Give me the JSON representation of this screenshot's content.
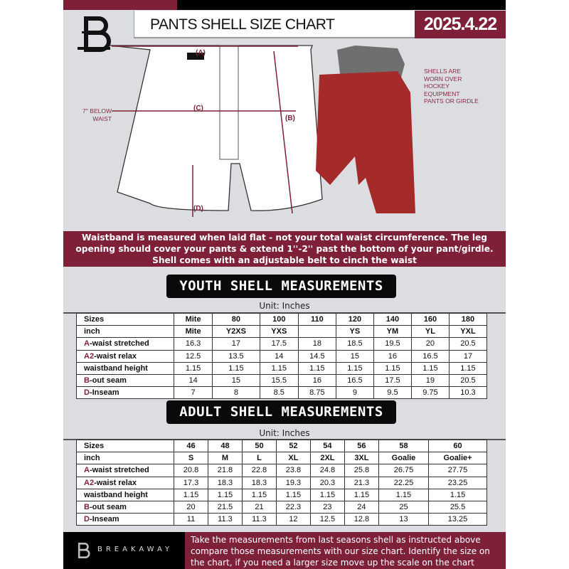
{
  "header": {
    "title": "PANTS SHELL SIZE CHART",
    "date": "2025.4.22"
  },
  "diagram": {
    "label_a": "(A)",
    "label_b": "(B)",
    "label_c": "(C)",
    "label_d": "(D)",
    "below_waist": "7'' BELOW WAIST",
    "note": "SHELLS ARE WORN OVER HOCKEY EQUIPMENT PANTS OR GIRDLE"
  },
  "banner": "Waistband is measured when laid flat - not your total waist circumference. The leg opening should cover your pants & extend 1''-2'' past the bottom of your pant/girdle. Shell comes with an adjustable belt to cinch the waist",
  "youth": {
    "title": "YOUTH SHELL MEASUREMENTS",
    "unit": "Unit: Inches",
    "rows": [
      {
        "prefix": "",
        "label": "Sizes",
        "values": [
          "Mite",
          "80",
          "100",
          "110",
          "120",
          "140",
          "160",
          "180"
        ]
      },
      {
        "prefix": "",
        "label": "inch",
        "values": [
          "Mite",
          "Y2XS",
          "YXS",
          "",
          "YS",
          "YM",
          "YL",
          "YXL"
        ]
      },
      {
        "prefix": "A",
        "label": "-waist stretched",
        "values": [
          "16.3",
          "17",
          "17.5",
          "18",
          "18.5",
          "19.5",
          "20",
          "20.5"
        ]
      },
      {
        "prefix": "A2",
        "label": "-waist relax",
        "values": [
          "12.5",
          "13.5",
          "14",
          "14.5",
          "15",
          "16",
          "16.5",
          "17"
        ]
      },
      {
        "prefix": "",
        "label": "waistband height",
        "values": [
          "1.15",
          "1.15",
          "1.15",
          "1.15",
          "1.15",
          "1.15",
          "1.15",
          "1.15"
        ]
      },
      {
        "prefix": "B",
        "label": "-out seam",
        "values": [
          "14",
          "15",
          "15.5",
          "16",
          "16.5",
          "17.5",
          "19",
          "20.5"
        ]
      },
      {
        "prefix": "D",
        "label": "-Inseam",
        "values": [
          "7",
          "8",
          "8.5",
          "8.75",
          "9",
          "9.5",
          "9.75",
          "10.3"
        ]
      }
    ]
  },
  "adult": {
    "title": "ADULT SHELL MEASUREMENTS",
    "unit": "Unit: Inches",
    "rows": [
      {
        "prefix": "",
        "label": "Sizes",
        "values": [
          "46",
          "48",
          "50",
          "52",
          "54",
          "56",
          "58",
          "60"
        ]
      },
      {
        "prefix": "",
        "label": "inch",
        "values": [
          "S",
          "M",
          "L",
          "XL",
          "2XL",
          "3XL",
          "Goalie",
          "Goalie+"
        ]
      },
      {
        "prefix": "A",
        "label": "-waist stretched",
        "values": [
          "20.8",
          "21.8",
          "22.8",
          "23.8",
          "24.8",
          "25.8",
          "26.75",
          "27.75"
        ]
      },
      {
        "prefix": "A2",
        "label": "-waist relax",
        "values": [
          "17.3",
          "18.3",
          "18.3",
          "19.3",
          "20.3",
          "21.3",
          "22.25",
          "23.25"
        ]
      },
      {
        "prefix": "",
        "label": "waistband height",
        "values": [
          "1.15",
          "1.15",
          "1.15",
          "1.15",
          "1.15",
          "1.15",
          "1.15",
          "1.15"
        ]
      },
      {
        "prefix": "B",
        "label": "-out seam",
        "values": [
          "20",
          "21.5",
          "21",
          "22.3",
          "23",
          "24",
          "25",
          "25.5"
        ]
      },
      {
        "prefix": "D",
        "label": "-Inseam",
        "values": [
          "11",
          "11.3",
          "11.3",
          "12",
          "12.5",
          "12.8",
          "13",
          "13.25"
        ]
      }
    ]
  },
  "footer": {
    "brand": "BREAKAWAY",
    "text": "Take the measurements from last seasons shell as instructed above compare those measurements  with our size chart. Identify the size on the chart, if you need a larger size move up the scale on the chart"
  },
  "colors": {
    "maroon": "#7e2138",
    "black": "#000000",
    "background": "#dcdde1"
  }
}
